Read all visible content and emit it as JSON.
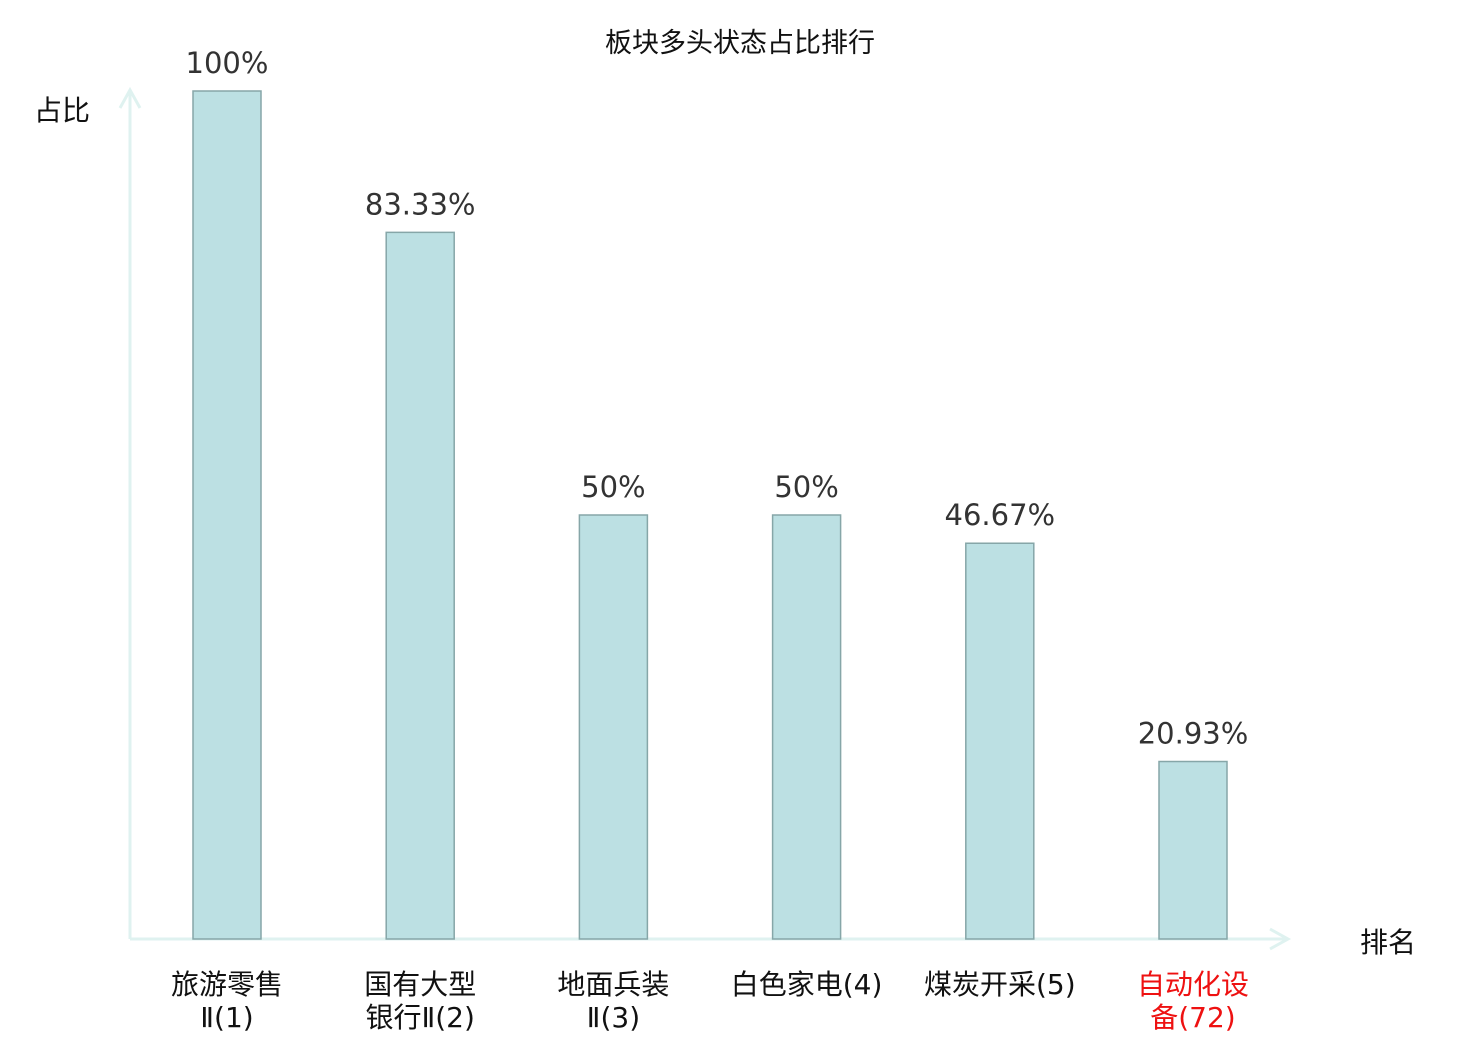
{
  "chart_data": {
    "type": "bar",
    "title": "板块多头状态占比排行",
    "xlabel": "排名",
    "ylabel": "占比",
    "ylim": [
      0,
      100
    ],
    "grid": false,
    "categories": [
      [
        "旅游零售",
        "Ⅱ(1)"
      ],
      [
        "国有大型",
        "银行Ⅱ(2)"
      ],
      [
        "地面兵装",
        "Ⅱ(3)"
      ],
      [
        "白色家电(4)"
      ],
      [
        "煤炭开采(5)"
      ],
      [
        "自动化设",
        "备(72)"
      ]
    ],
    "values": [
      100,
      83.33,
      50,
      50,
      46.67,
      20.93
    ],
    "value_labels": [
      "100%",
      "83.33%",
      "50%",
      "50%",
      "46.67%",
      "20.93%"
    ],
    "highlight_index": 5,
    "colors": {
      "bar": "#bce0e3",
      "bar_edge": "#86a6a8",
      "axis": "#dff2f0",
      "highlight": "#ee1111",
      "label": "#111111"
    }
  }
}
